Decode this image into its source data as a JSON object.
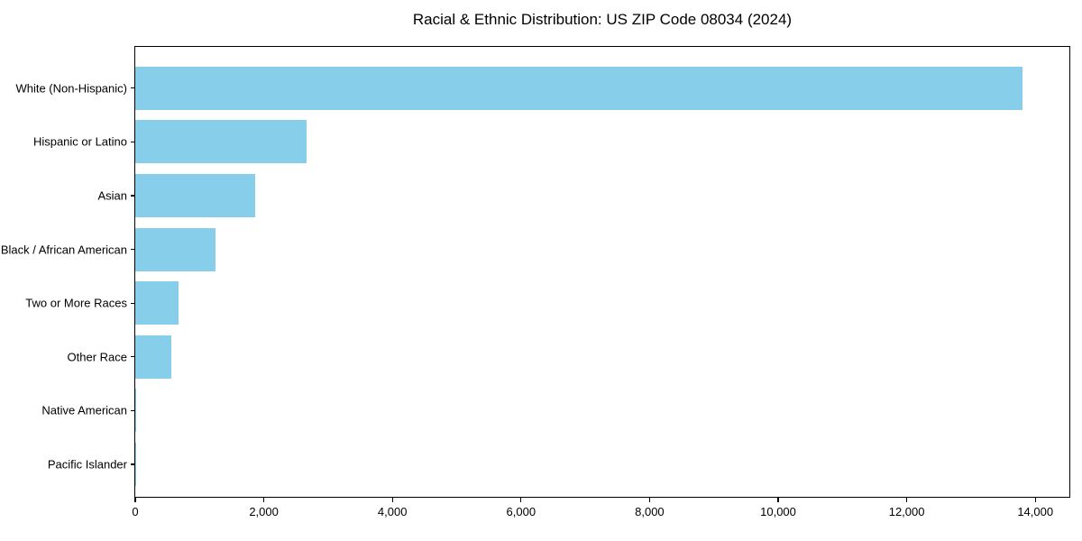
{
  "chart_data": {
    "type": "bar",
    "orientation": "horizontal",
    "title": "Racial & Ethnic Distribution: US ZIP Code 08034 (2024)",
    "categories": [
      "White (Non-Hispanic)",
      "Hispanic or Latino",
      "Asian",
      "Black / African American",
      "Two or More Races",
      "Other Race",
      "Native American",
      "Pacific Islander"
    ],
    "values": [
      13800,
      2670,
      1860,
      1250,
      670,
      560,
      15,
      5
    ],
    "bar_color": "#87CEEB",
    "xlabel": "",
    "ylabel": "",
    "xlim": [
      0,
      14530
    ],
    "xticks": [
      0,
      2000,
      4000,
      6000,
      8000,
      10000,
      12000,
      14000
    ],
    "xtick_labels": [
      "0",
      "2,000",
      "4,000",
      "6,000",
      "8,000",
      "10,000",
      "12,000",
      "14,000"
    ],
    "grid": false,
    "legend": null,
    "largest_bar_at_top": true
  }
}
